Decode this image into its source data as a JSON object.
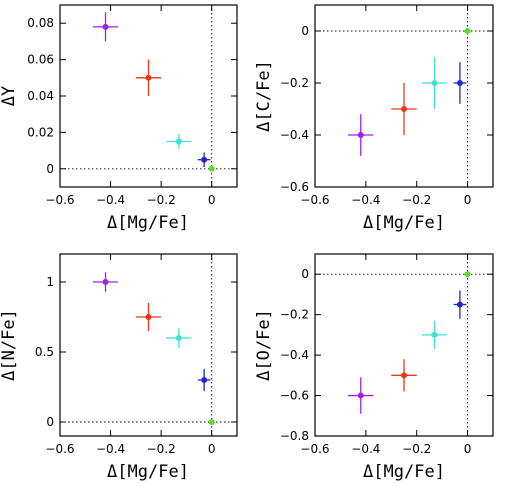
{
  "chart_data": [
    {
      "type": "scatter",
      "xlabel": "Δ[Mg/Fe]",
      "ylabel": "ΔY",
      "xlim": [
        -0.6,
        0.1
      ],
      "ylim": [
        -0.01,
        0.09
      ],
      "xticks": [
        -0.6,
        -0.4,
        -0.2,
        0
      ],
      "xtick_labels": [
        "−0.6",
        "−0.4",
        "−0.2",
        "0"
      ],
      "yticks": [
        0,
        0.02,
        0.04,
        0.06,
        0.08
      ],
      "ytick_labels": [
        "0",
        "0.02",
        "0.04",
        "0.06",
        "0.08"
      ],
      "ref_y": 0,
      "ref_x": 0,
      "points": [
        {
          "x": -0.42,
          "y": 0.078,
          "xerr": 0.05,
          "yerr": 0.008,
          "color": "#a020f0"
        },
        {
          "x": -0.25,
          "y": 0.05,
          "xerr": 0.05,
          "yerr": 0.01,
          "color": "#e8381a"
        },
        {
          "x": -0.13,
          "y": 0.015,
          "xerr": 0.05,
          "yerr": 0.004,
          "color": "#40e0d0"
        },
        {
          "x": -0.03,
          "y": 0.005,
          "xerr": 0.025,
          "yerr": 0.004,
          "color": "#1f28d8"
        },
        {
          "x": 0.0,
          "y": 0.0,
          "xerr": 0,
          "yerr": 0,
          "color": "#55e01f"
        }
      ]
    },
    {
      "type": "scatter",
      "xlabel": "Δ[Mg/Fe]",
      "ylabel": "Δ[C/Fe]",
      "xlim": [
        -0.6,
        0.1
      ],
      "ylim": [
        -0.6,
        0.1
      ],
      "xticks": [
        -0.6,
        -0.4,
        -0.2,
        0
      ],
      "xtick_labels": [
        "−0.6",
        "−0.4",
        "−0.2",
        "0"
      ],
      "yticks": [
        -0.6,
        -0.4,
        -0.2,
        0
      ],
      "ytick_labels": [
        "−0.6",
        "−0.4",
        "−0.2",
        "0"
      ],
      "ref_y": 0,
      "ref_x": 0,
      "points": [
        {
          "x": -0.42,
          "y": -0.4,
          "xerr": 0.05,
          "yerr": 0.08,
          "color": "#a020f0"
        },
        {
          "x": -0.25,
          "y": -0.3,
          "xerr": 0.05,
          "yerr": 0.1,
          "color": "#e8381a"
        },
        {
          "x": -0.13,
          "y": -0.2,
          "xerr": 0.05,
          "yerr": 0.1,
          "color": "#40e0d0"
        },
        {
          "x": -0.03,
          "y": -0.2,
          "xerr": 0.025,
          "yerr": 0.08,
          "color": "#1f28d8"
        },
        {
          "x": 0.0,
          "y": 0.0,
          "xerr": 0,
          "yerr": 0,
          "color": "#55e01f"
        }
      ]
    },
    {
      "type": "scatter",
      "xlabel": "Δ[Mg/Fe]",
      "ylabel": "Δ[N/Fe]",
      "xlim": [
        -0.6,
        0.1
      ],
      "ylim": [
        -0.1,
        1.2
      ],
      "xticks": [
        -0.6,
        -0.4,
        -0.2,
        0
      ],
      "xtick_labels": [
        "−0.6",
        "−0.4",
        "−0.2",
        "0"
      ],
      "yticks": [
        0,
        0.5,
        1
      ],
      "ytick_labels": [
        "0",
        "0.5",
        "1"
      ],
      "ref_y": 0,
      "ref_x": 0,
      "points": [
        {
          "x": -0.42,
          "y": 1.0,
          "xerr": 0.05,
          "yerr": 0.07,
          "color": "#a020f0"
        },
        {
          "x": -0.25,
          "y": 0.75,
          "xerr": 0.05,
          "yerr": 0.1,
          "color": "#e8381a"
        },
        {
          "x": -0.13,
          "y": 0.6,
          "xerr": 0.05,
          "yerr": 0.07,
          "color": "#40e0d0"
        },
        {
          "x": -0.03,
          "y": 0.3,
          "xerr": 0.025,
          "yerr": 0.08,
          "color": "#1f28d8"
        },
        {
          "x": 0.0,
          "y": 0.0,
          "xerr": 0,
          "yerr": 0,
          "color": "#55e01f"
        }
      ]
    },
    {
      "type": "scatter",
      "xlabel": "Δ[Mg/Fe]",
      "ylabel": "Δ[O/Fe]",
      "xlim": [
        -0.6,
        0.1
      ],
      "ylim": [
        -0.8,
        0.1
      ],
      "xticks": [
        -0.6,
        -0.4,
        -0.2,
        0
      ],
      "xtick_labels": [
        "−0.6",
        "−0.4",
        "−0.2",
        "0"
      ],
      "yticks": [
        -0.8,
        -0.6,
        -0.4,
        -0.2,
        0
      ],
      "ytick_labels": [
        "−0.8",
        "−0.6",
        "−0.4",
        "−0.2",
        "0"
      ],
      "ref_y": 0,
      "ref_x": 0,
      "points": [
        {
          "x": -0.42,
          "y": -0.6,
          "xerr": 0.05,
          "yerr": 0.09,
          "color": "#a020f0"
        },
        {
          "x": -0.25,
          "y": -0.5,
          "xerr": 0.05,
          "yerr": 0.08,
          "color": "#e8381a"
        },
        {
          "x": -0.13,
          "y": -0.3,
          "xerr": 0.05,
          "yerr": 0.07,
          "color": "#40e0d0"
        },
        {
          "x": -0.03,
          "y": -0.15,
          "xerr": 0.025,
          "yerr": 0.07,
          "color": "#1f28d8"
        },
        {
          "x": 0.0,
          "y": 0.0,
          "xerr": 0,
          "yerr": 0,
          "color": "#55e01f"
        }
      ]
    }
  ]
}
